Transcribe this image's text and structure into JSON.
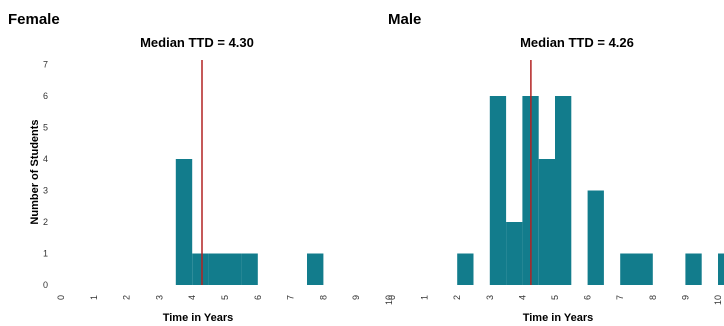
{
  "panels": [
    {
      "label": "Female",
      "median_title": "Median TTD = 4.30"
    },
    {
      "label": "Male",
      "median_title": "Median TTD = 4.26"
    }
  ],
  "ylabel": "Number of Students",
  "xlabel": "Time in Years",
  "bar_color": "#127c8c",
  "median_color": "#b22222",
  "chart_data": [
    {
      "type": "bar",
      "title": "Median TTD = 4.30",
      "panel": "Female",
      "xlabel": "Time in Years",
      "ylabel": "Number of Students",
      "bin_width": 0.5,
      "bins": [
        {
          "x": 3.5,
          "count": 4
        },
        {
          "x": 4.0,
          "count": 1
        },
        {
          "x": 4.5,
          "count": 1
        },
        {
          "x": 5.0,
          "count": 1
        },
        {
          "x": 5.5,
          "count": 1
        },
        {
          "x": 7.5,
          "count": 1
        }
      ],
      "median": 4.3,
      "xlim": [
        0,
        10
      ],
      "xticks": [
        0,
        1,
        2,
        3,
        4,
        5,
        6,
        7,
        8,
        9,
        10
      ],
      "ylim": [
        0,
        7
      ],
      "yticks": [
        0,
        1,
        2,
        3,
        4,
        5,
        6,
        7
      ]
    },
    {
      "type": "bar",
      "title": "Median TTD = 4.26",
      "panel": "Male",
      "xlabel": "Time in Years",
      "bin_width": 0.5,
      "bins": [
        {
          "x": 2.0,
          "count": 1
        },
        {
          "x": 3.0,
          "count": 6
        },
        {
          "x": 3.5,
          "count": 2
        },
        {
          "x": 4.0,
          "count": 6
        },
        {
          "x": 4.5,
          "count": 4
        },
        {
          "x": 5.0,
          "count": 6
        },
        {
          "x": 6.0,
          "count": 3
        },
        {
          "x": 7.0,
          "count": 1
        },
        {
          "x": 7.5,
          "count": 1
        },
        {
          "x": 9.0,
          "count": 1
        },
        {
          "x": 10.0,
          "count": 1
        }
      ],
      "median": 4.26,
      "xlim": [
        0,
        10
      ],
      "xticks": [
        0,
        1,
        2,
        3,
        4,
        5,
        6,
        7,
        8,
        9,
        10
      ],
      "ylim": [
        0,
        7
      ]
    }
  ]
}
